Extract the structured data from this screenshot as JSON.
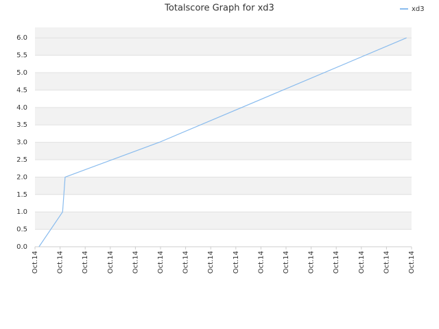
{
  "chart_data": {
    "type": "line",
    "title": "Totalscore Graph for xd3",
    "x": [
      0.16,
      1.1,
      1.2,
      4.95,
      14.8
    ],
    "series": [
      {
        "name": "xd3",
        "color": "#88bbee",
        "values": [
          0,
          1,
          2,
          3,
          6
        ]
      }
    ],
    "xlim": [
      0,
      15
    ],
    "xticks": [
      {
        "value": 0,
        "label": "Oct.14"
      },
      {
        "value": 1,
        "label": "Oct.14"
      },
      {
        "value": 2,
        "label": "Oct.14"
      },
      {
        "value": 3,
        "label": "Oct.14"
      },
      {
        "value": 4,
        "label": "Oct.14"
      },
      {
        "value": 5,
        "label": "Oct.14"
      },
      {
        "value": 6,
        "label": "Oct.14"
      },
      {
        "value": 7,
        "label": "Oct.14"
      },
      {
        "value": 8,
        "label": "Oct.14"
      },
      {
        "value": 9,
        "label": "Oct.14"
      },
      {
        "value": 10,
        "label": "Oct.14"
      },
      {
        "value": 11,
        "label": "Oct.14"
      },
      {
        "value": 12,
        "label": "Oct.14"
      },
      {
        "value": 13,
        "label": "Oct.14"
      },
      {
        "value": 14,
        "label": "Oct.14"
      },
      {
        "value": 15,
        "label": "Oct.14"
      }
    ],
    "ylim": [
      0,
      6.3
    ],
    "yticks": [
      {
        "value": 0,
        "label": "0.0"
      },
      0.5,
      {
        "value": 1,
        "label": "1.0"
      },
      1.5,
      {
        "value": 2,
        "label": "2.0"
      },
      2.5,
      {
        "value": 3,
        "label": "3.0"
      },
      3.5,
      {
        "value": 4,
        "label": "4.0"
      },
      4.5,
      {
        "value": 5,
        "label": "5.0"
      },
      5.5,
      {
        "value": 6,
        "label": "6.0"
      }
    ],
    "grid": true,
    "legend": "top-right"
  }
}
